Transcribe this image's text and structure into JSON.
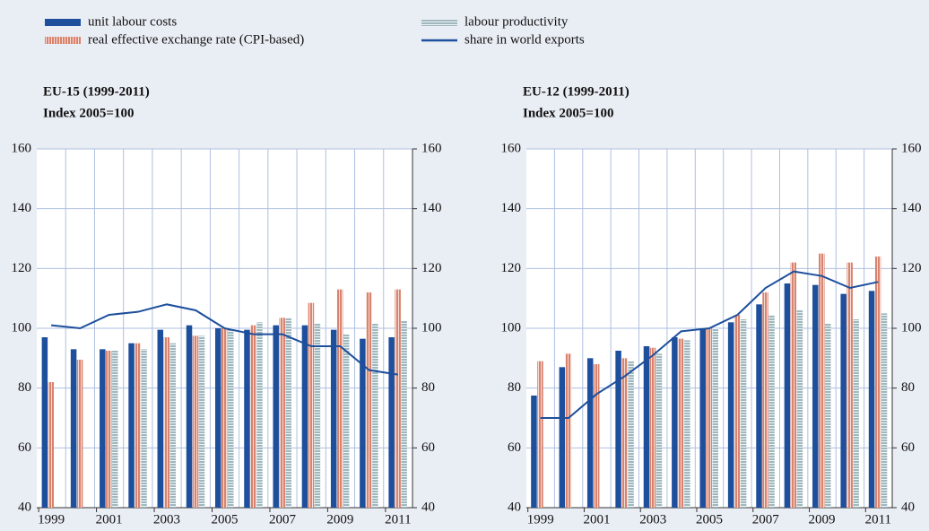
{
  "chart_data": [
    {
      "type": "bar",
      "title": "EU-15 (1999-2011)",
      "subtitle": "Index 2005=100",
      "categories": [
        "1999",
        null,
        "2001",
        null,
        "2003",
        null,
        "2005",
        null,
        "2007",
        null,
        "2009",
        null,
        "2011"
      ],
      "series": [
        {
          "name": "unit labour costs",
          "color": "#1d4f9c",
          "values": [
            97,
            93,
            93,
            95,
            99.5,
            101,
            100,
            99.5,
            101,
            101,
            99.5,
            96.5,
            97
          ]
        },
        {
          "name": "real effective exchange rate (CPI-based)",
          "color": "#d9826e",
          "values": [
            82,
            89.5,
            92.5,
            95,
            97,
            97.5,
            100,
            101,
            103.5,
            108.5,
            113,
            112,
            113
          ]
        },
        {
          "name": "labour productivity",
          "color": "#9fb8bf",
          "values": [
            null,
            null,
            92.5,
            93,
            95,
            97.5,
            100,
            102,
            103.5,
            101.5,
            98,
            101.5,
            102.5
          ]
        },
        {
          "name": "share in world exports",
          "color": "#1d4f9c",
          "type": "line",
          "axis": "y2",
          "values": [
            101,
            100,
            104.5,
            105.5,
            108,
            106,
            100,
            98,
            98,
            94,
            94,
            86,
            84.5
          ]
        }
      ],
      "ylim": [
        40,
        160
      ],
      "yticks": [
        40,
        60,
        80,
        100,
        120,
        140,
        160
      ],
      "y2lim": [
        40,
        160
      ],
      "y2ticks": [
        40,
        60,
        80,
        100,
        120,
        140,
        160
      ],
      "grid": true
    },
    {
      "type": "bar",
      "title": "EU-12 (1999-2011)",
      "subtitle": "Index 2005=100",
      "categories": [
        "1999",
        null,
        "2001",
        null,
        "2003",
        null,
        "2005",
        null,
        "2007",
        null,
        "2009",
        null,
        "2011"
      ],
      "series": [
        {
          "name": "unit labour costs",
          "color": "#1d4f9c",
          "values": [
            77.5,
            87,
            90,
            92.5,
            94,
            97,
            100,
            102,
            108,
            115,
            114.5,
            111.5,
            112.5
          ]
        },
        {
          "name": "real effective exchange rate (CPI-based)",
          "color": "#d9826e",
          "values": [
            89,
            91.5,
            88,
            90,
            93.5,
            96.5,
            100,
            104.5,
            112,
            122,
            125,
            122,
            124
          ]
        },
        {
          "name": "labour productivity",
          "color": "#9fb8bf",
          "values": [
            null,
            null,
            null,
            89,
            91.5,
            96,
            100,
            103,
            104.5,
            106,
            101.5,
            103,
            105
          ]
        },
        {
          "name": "share in world exports",
          "color": "#1d4f9c",
          "type": "line",
          "axis": "y2",
          "values": [
            70,
            70,
            78,
            84,
            91,
            99,
            100,
            104.5,
            113.5,
            119,
            117.5,
            113.5,
            115.5
          ]
        }
      ],
      "ylim": [
        40,
        160
      ],
      "yticks": [
        40,
        60,
        80,
        100,
        120,
        140,
        160
      ],
      "y2lim": [
        40,
        160
      ],
      "y2ticks": [
        40,
        60,
        80,
        100,
        120,
        140,
        160
      ],
      "grid": true
    }
  ]
}
